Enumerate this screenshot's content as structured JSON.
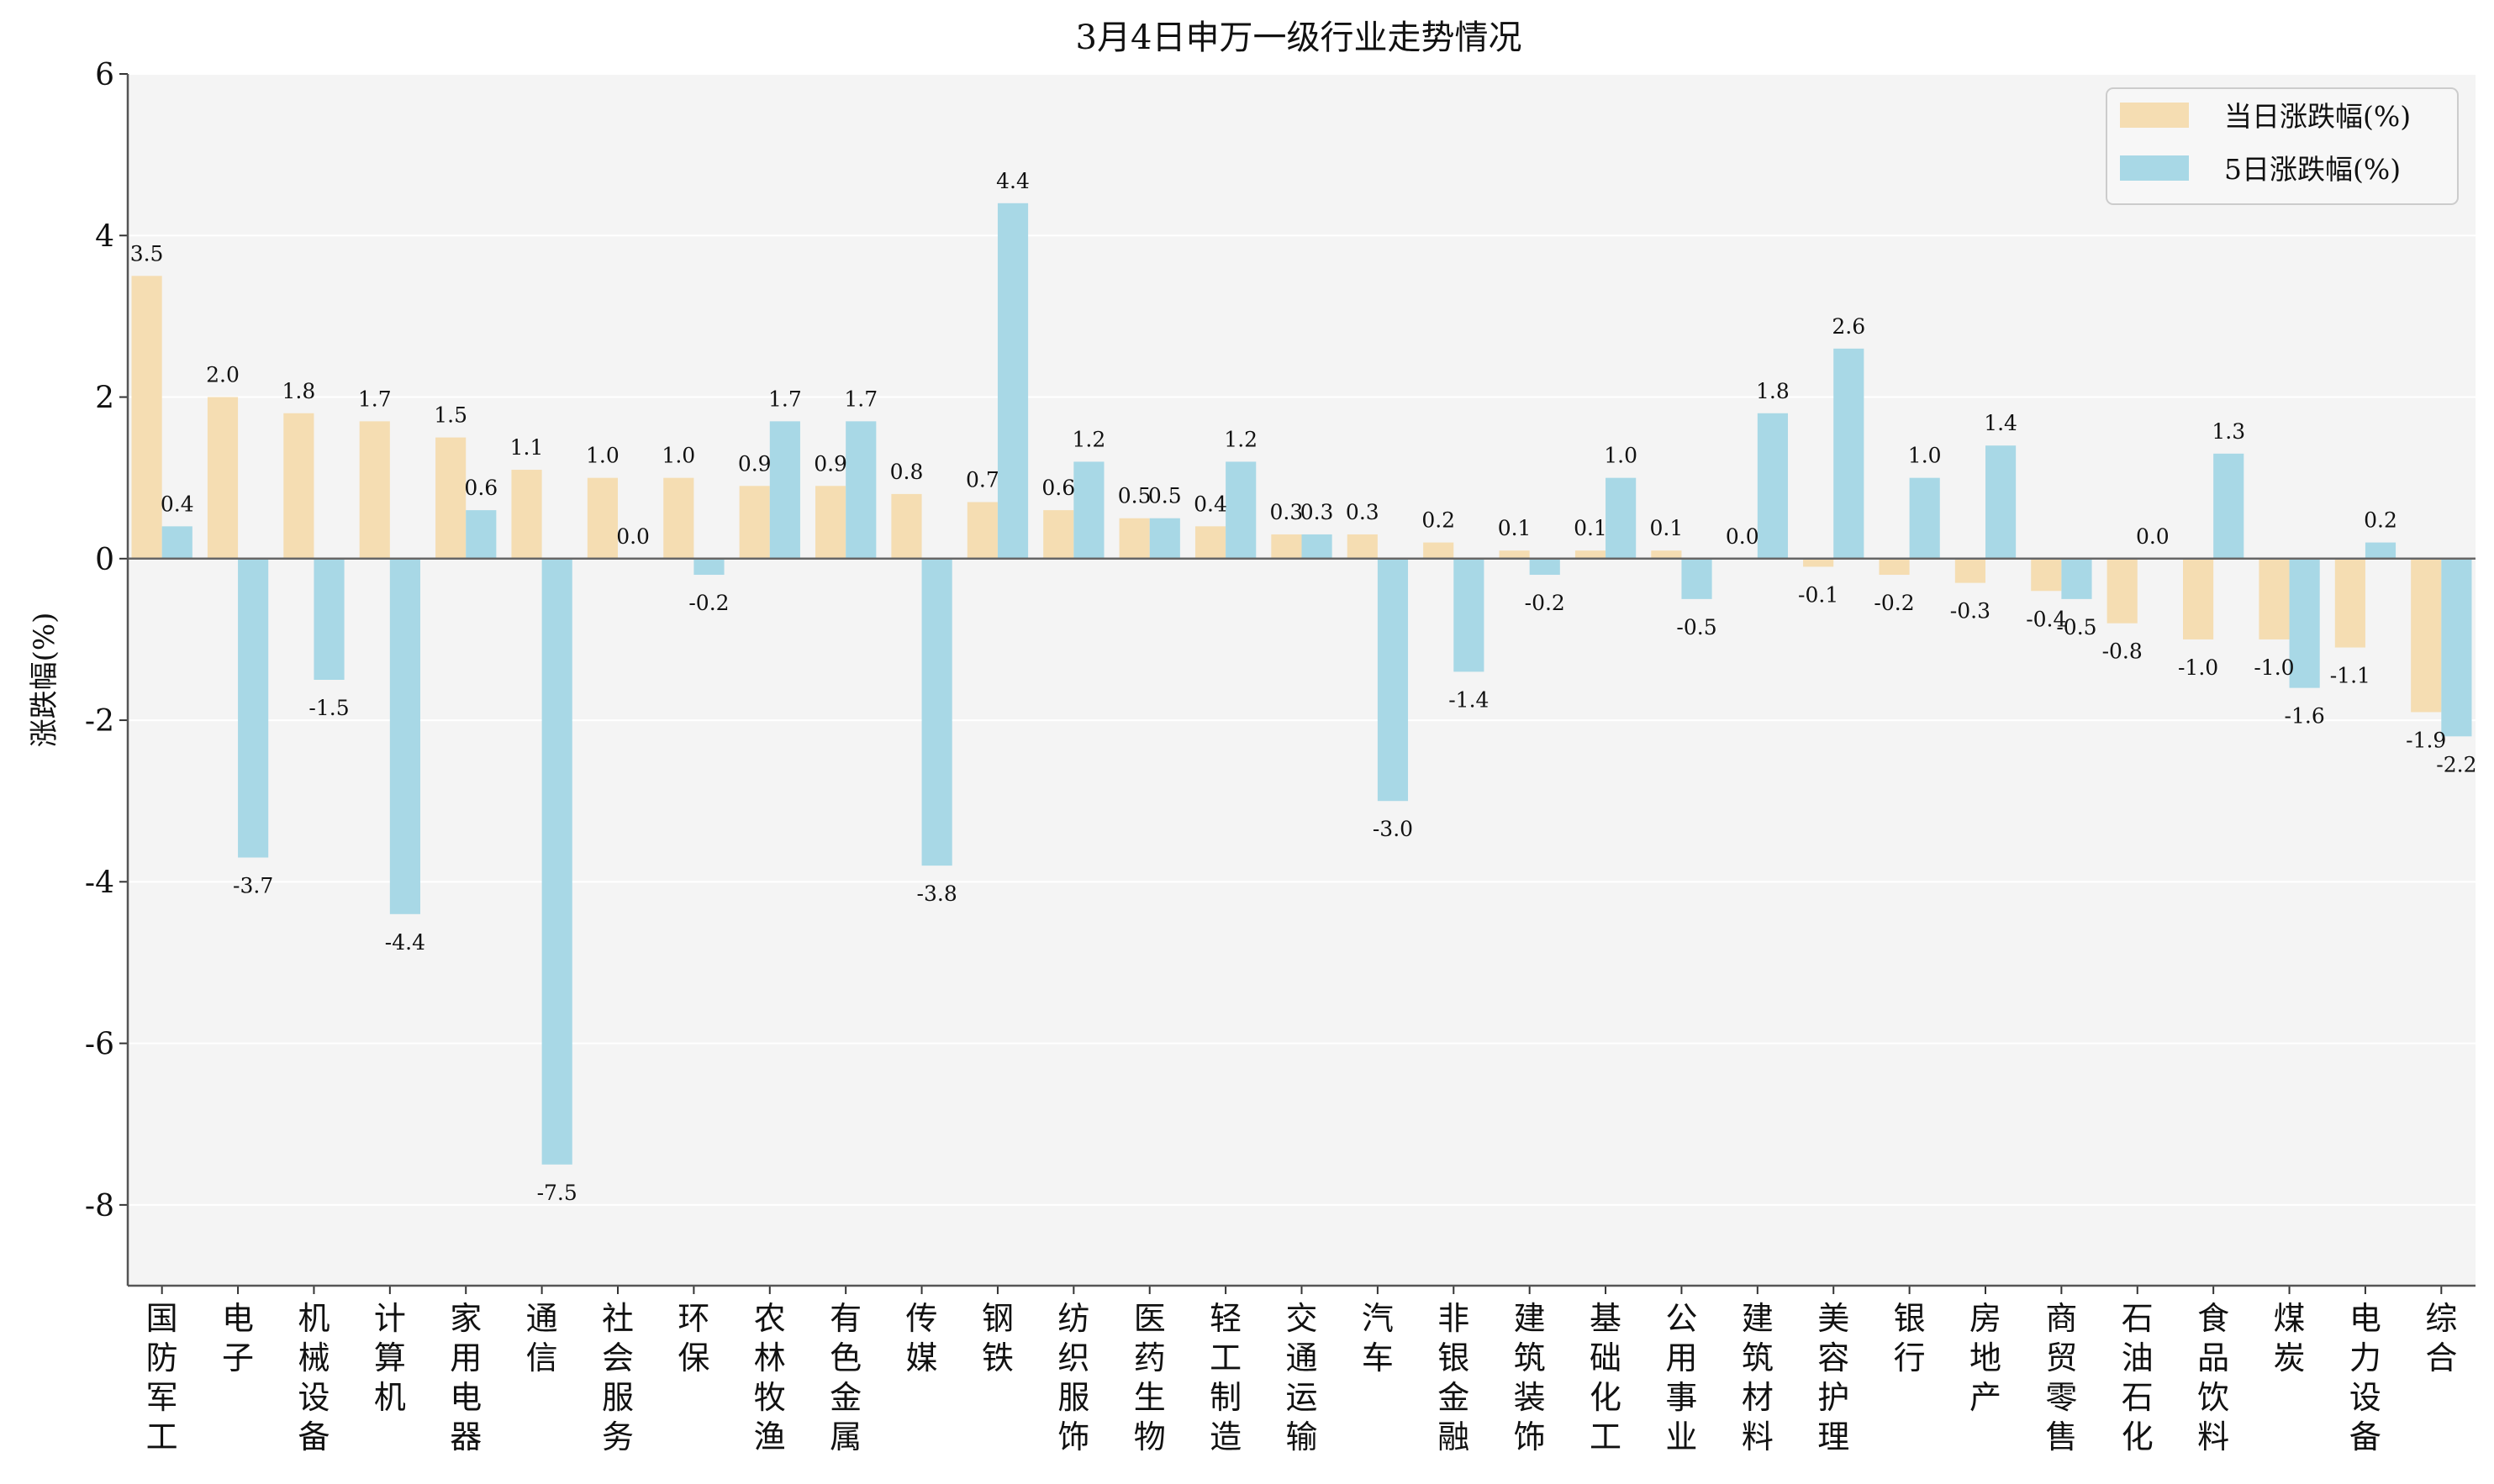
{
  "chart_data": {
    "type": "bar",
    "title": "3月4日申万一级行业走势情况",
    "ylabel": "涨跌幅(%)",
    "ylim": [
      -9,
      6
    ],
    "yticks": [
      6,
      4,
      2,
      0,
      -2,
      -4,
      -6,
      -8
    ],
    "grid": true,
    "legend_position": "top-right",
    "categories": [
      "国防军工",
      "电子",
      "机械设备",
      "计算机",
      "家用电器",
      "通信",
      "社会服务",
      "环保",
      "农林牧渔",
      "有色金属",
      "传媒",
      "钢铁",
      "纺织服饰",
      "医药生物",
      "轻工制造",
      "交通运输",
      "汽车",
      "非银金融",
      "建筑装饰",
      "基础化工",
      "公用事业",
      "建筑材料",
      "美容护理",
      "银行",
      "房地产",
      "商贸零售",
      "石油石化",
      "食品饮料",
      "煤炭",
      "电力设备",
      "综合"
    ],
    "series": [
      {
        "name": "当日涨跌幅(%)",
        "color": "#f5ddb2",
        "values": [
          3.5,
          2.0,
          1.8,
          1.7,
          1.5,
          1.1,
          1.0,
          1.0,
          0.9,
          0.9,
          0.8,
          0.7,
          0.6,
          0.5,
          0.4,
          0.3,
          0.3,
          0.2,
          0.1,
          0.1,
          0.1,
          0.0,
          -0.1,
          -0.2,
          -0.3,
          -0.4,
          -0.8,
          -1.0,
          -1.0,
          -1.1,
          -1.9
        ]
      },
      {
        "name": "5日涨跌幅(%)",
        "color": "#a8d8e6",
        "values": [
          0.4,
          -3.7,
          -1.5,
          -4.4,
          0.6,
          -7.5,
          0.0,
          -0.2,
          1.7,
          1.7,
          -3.8,
          4.4,
          1.2,
          0.5,
          1.2,
          0.3,
          -3.0,
          -1.4,
          -0.2,
          1.0,
          -0.5,
          1.8,
          2.6,
          1.0,
          1.4,
          -0.5,
          0.0,
          1.3,
          -1.6,
          0.2,
          -2.2
        ]
      }
    ]
  }
}
